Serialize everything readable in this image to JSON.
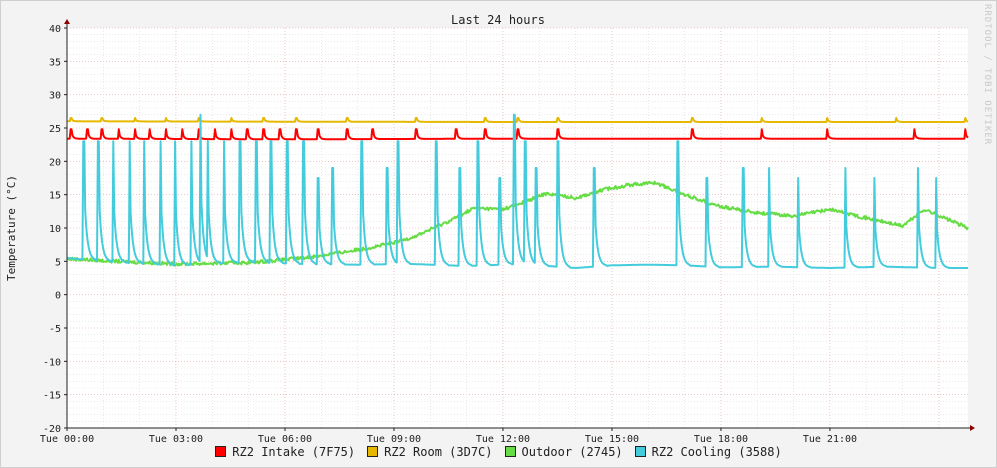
{
  "chart_data": {
    "type": "line",
    "title": "Last 24 hours",
    "ylabel": "Temperature (°C)",
    "xlabel": "",
    "ylim": [
      -20,
      40
    ],
    "yticks": [
      40,
      35,
      30,
      25,
      20,
      15,
      10,
      5,
      0,
      -5,
      -10,
      -15,
      -20
    ],
    "xticks": [
      "Tue 00:00",
      "Tue 03:00",
      "Tue 06:00",
      "Tue 09:00",
      "Tue 12:00",
      "Tue 15:00",
      "Tue 18:00",
      "Tue 21:00"
    ],
    "xrange_hours": [
      0,
      24.8
    ],
    "grid": true,
    "legend_position": "bottom",
    "series": [
      {
        "name": "RZ2 Intake (7F75)",
        "color": "#ff0000",
        "baseline": [
          [
            0,
            23.4
          ],
          [
            6,
            23.3
          ],
          [
            12,
            23.4
          ],
          [
            18,
            23.4
          ],
          [
            24.8,
            23.4
          ]
        ],
        "spikes": [
          {
            "peak": 24.8,
            "times": [
              0.1,
              0.55,
              0.95,
              1.4,
              1.85,
              2.25,
              2.7,
              3.15,
              3.6,
              4.05,
              4.5,
              4.95,
              5.4,
              5.85,
              6.3,
              6.9,
              7.7,
              8.4,
              9.6,
              10.7,
              11.5,
              12.4,
              13.5,
              17.2,
              19.1,
              20.9,
              23.3,
              24.7
            ]
          }
        ]
      },
      {
        "name": "RZ2 Room (3D7C)",
        "color": "#e6b800",
        "baseline": [
          [
            0,
            26.0
          ],
          [
            12,
            25.9
          ],
          [
            24.8,
            25.9
          ]
        ],
        "spikes": [
          {
            "peak": 26.5,
            "times": [
              0.1,
              0.95,
              1.85,
              2.7,
              3.6,
              4.5,
              5.4,
              6.3,
              7.7,
              9.6,
              11.5,
              12.4,
              13.5,
              17.2,
              19.1,
              20.9,
              22.8,
              24.7
            ]
          }
        ]
      },
      {
        "name": "Outdoor (2745)",
        "color": "#66dd44",
        "baseline": [
          [
            0,
            5.4
          ],
          [
            1,
            5.1
          ],
          [
            3,
            4.6
          ],
          [
            5,
            4.8
          ],
          [
            6.5,
            5.5
          ],
          [
            7.5,
            6.3
          ],
          [
            8.3,
            7.0
          ],
          [
            9,
            7.8
          ],
          [
            9.6,
            8.8
          ],
          [
            10.5,
            11.0
          ],
          [
            11.2,
            13.0
          ],
          [
            12,
            12.8
          ],
          [
            12.6,
            13.9
          ],
          [
            13.2,
            15.2
          ],
          [
            14,
            14.5
          ],
          [
            14.8,
            15.8
          ],
          [
            15.5,
            16.5
          ],
          [
            16.2,
            16.8
          ],
          [
            17,
            15.0
          ],
          [
            18,
            13.2
          ],
          [
            19,
            12.3
          ],
          [
            20,
            11.8
          ],
          [
            21,
            12.8
          ],
          [
            22,
            11.5
          ],
          [
            23,
            10.3
          ],
          [
            23.6,
            12.8
          ],
          [
            24.8,
            10.0
          ]
        ],
        "spikes": []
      },
      {
        "name": "RZ2 Cooling (3588)",
        "color": "#44ccdd",
        "baseline": [
          [
            0,
            5.5
          ],
          [
            1,
            5.0
          ],
          [
            3,
            4.4
          ],
          [
            5,
            4.9
          ],
          [
            6.5,
            4.6
          ],
          [
            8,
            4.5
          ],
          [
            9.5,
            4.6
          ],
          [
            11,
            4.3
          ],
          [
            12.5,
            4.6
          ],
          [
            14,
            4.0
          ],
          [
            15,
            4.4
          ],
          [
            16,
            4.5
          ],
          [
            17,
            4.4
          ],
          [
            18,
            4.1
          ],
          [
            19.5,
            4.2
          ],
          [
            21,
            4.0
          ],
          [
            22.5,
            4.2
          ],
          [
            24,
            4.0
          ],
          [
            24.8,
            4.0
          ]
        ],
        "spikes": [
          {
            "peak": 23.0,
            "times": [
              0.45,
              0.85,
              1.25,
              1.7,
              2.1,
              2.55,
              2.95,
              3.4,
              3.85,
              4.3,
              4.75,
              5.2,
              5.6,
              6.05,
              6.5,
              8.1,
              9.1,
              10.15,
              11.3,
              12.6,
              13.5,
              16.8
            ]
          },
          {
            "peak": 27.0,
            "times": [
              3.65,
              12.3
            ]
          },
          {
            "peak": 17.5,
            "times": [
              6.9,
              11.9,
              17.6,
              20.1,
              22.2,
              23.9
            ]
          },
          {
            "peak": 19.0,
            "times": [
              7.3,
              8.8,
              10.8,
              12.9,
              14.5,
              18.6,
              19.3,
              21.4,
              23.4
            ]
          }
        ]
      }
    ]
  }
}
